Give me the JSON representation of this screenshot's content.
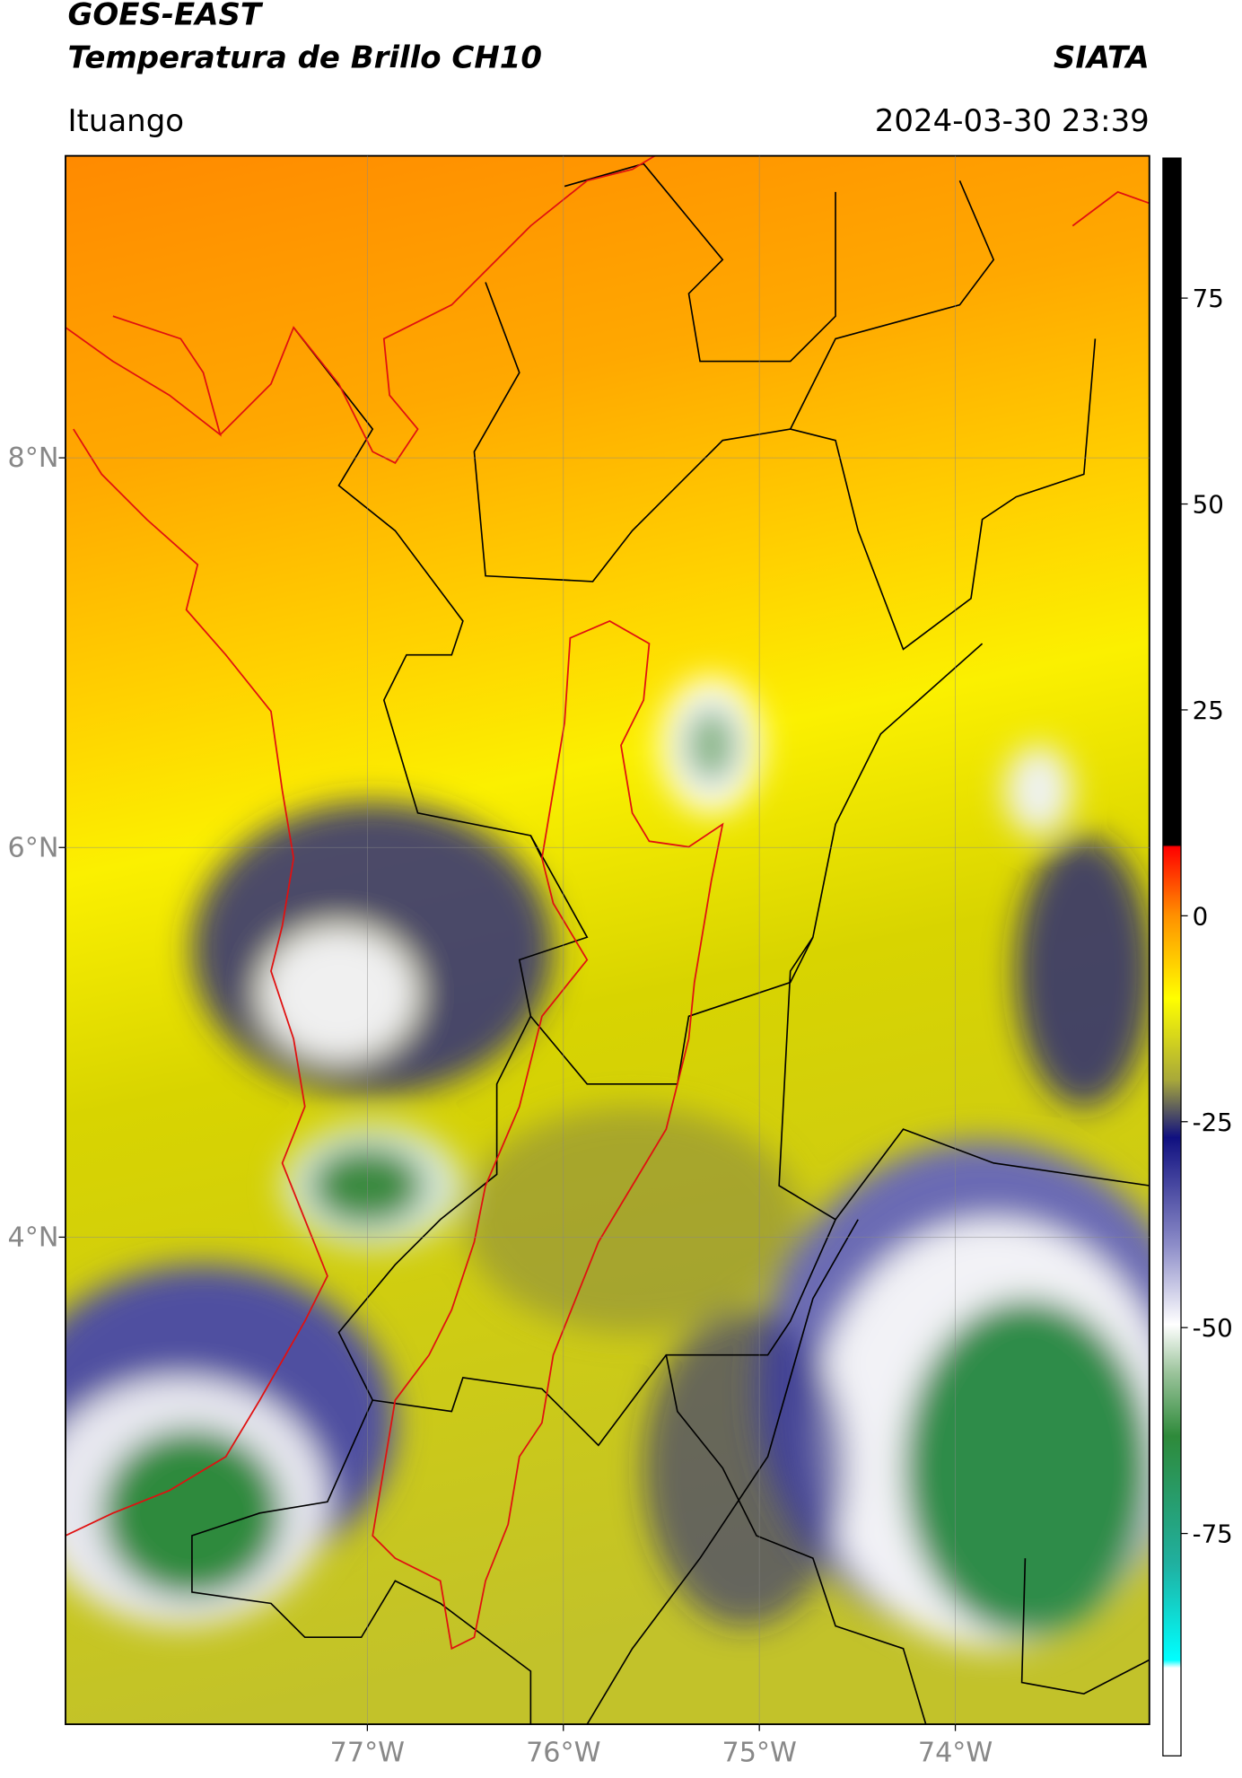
{
  "header": {
    "title": "GOES-EAST",
    "subtitle": "Temperatura de Brillo CH10",
    "source": "SIATA",
    "location": "Ituango",
    "timestamp": "2024-03-30 23:39"
  },
  "map": {
    "lon_range": [
      -78.54,
      -73.01
    ],
    "lat_range": [
      1.5,
      9.55
    ],
    "lat_ticks": [
      {
        "value": 8,
        "label": "8°N"
      },
      {
        "value": 6,
        "label": "6°N"
      },
      {
        "value": 4,
        "label": "4°N"
      }
    ],
    "lon_ticks": [
      {
        "value": -77,
        "label": "77°W"
      },
      {
        "value": -76,
        "label": "76°W"
      },
      {
        "value": -75,
        "label": "75°W"
      },
      {
        "value": -74,
        "label": "74°W"
      }
    ]
  },
  "colorbar": {
    "range": [
      -102,
      92
    ],
    "ticks": [
      75,
      50,
      25,
      0,
      -25,
      -50,
      -75
    ]
  }
}
